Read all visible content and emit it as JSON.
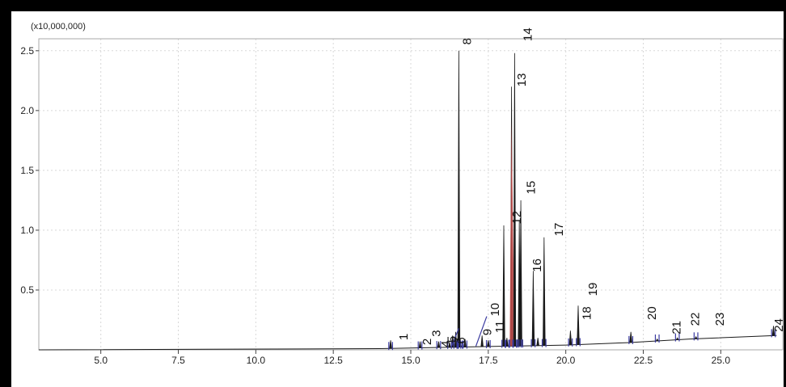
{
  "chart_data": {
    "type": "line",
    "title": "",
    "xlabel": "",
    "ylabel": "",
    "y_unit_label": "(x10,000,000)",
    "xlim": [
      3.0,
      27.0
    ],
    "ylim": [
      0,
      2.6
    ],
    "grid": true,
    "x_ticks": [
      5.0,
      7.5,
      10.0,
      12.5,
      15.0,
      17.5,
      20.0,
      22.5,
      25.0
    ],
    "x_tick_labels": [
      "5.0",
      "7.5",
      "10.0",
      "12.5",
      "15.0",
      "17.5",
      "20.0",
      "22.5",
      "25.0"
    ],
    "y_ticks": [
      0.5,
      1.0,
      1.5,
      2.0,
      2.5
    ],
    "y_tick_labels": [
      "0.5",
      "1.0",
      "1.5",
      "2.0",
      "2.5"
    ],
    "baseline": [
      [
        3.0,
        0.0
      ],
      [
        14.0,
        0.01
      ],
      [
        16.0,
        0.02
      ],
      [
        18.0,
        0.03
      ],
      [
        20.0,
        0.04
      ],
      [
        22.0,
        0.06
      ],
      [
        24.0,
        0.09
      ],
      [
        26.8,
        0.12
      ]
    ],
    "peaks": [
      {
        "label": "1",
        "x": 14.35,
        "y": 0.08
      },
      {
        "label": "2",
        "x": 15.3,
        "y": 0.07
      },
      {
        "label": "3",
        "x": 15.9,
        "y": 0.07
      },
      {
        "label": "4",
        "x": 16.25,
        "y": 0.06
      },
      {
        "label": "5",
        "x": 16.45,
        "y": 0.09
      },
      {
        "label": "6",
        "x": 16.6,
        "y": 0.08
      },
      {
        "label": "7",
        "x": 16.75,
        "y": 0.09
      },
      {
        "label": "8",
        "x": 16.55,
        "y": 2.5
      },
      {
        "label": "9",
        "x": 17.5,
        "y": 0.08
      },
      {
        "label": "10",
        "x": 18.0,
        "y": 1.04
      },
      {
        "label": "11",
        "x": 18.1,
        "y": 0.1
      },
      {
        "label": "12",
        "x": 18.55,
        "y": 1.25
      },
      {
        "label": "13",
        "x": 18.25,
        "y": 2.2
      },
      {
        "label": "14",
        "x": 18.35,
        "y": 2.48
      },
      {
        "label": "15",
        "x": 18.5,
        "y": 1.08
      },
      {
        "label": "16",
        "x": 18.95,
        "y": 0.66
      },
      {
        "label": "17",
        "x": 19.3,
        "y": 0.94
      },
      {
        "label": "18",
        "x": 20.15,
        "y": 0.16
      },
      {
        "label": "19",
        "x": 20.4,
        "y": 0.37
      },
      {
        "label": "20",
        "x": 22.1,
        "y": 0.15
      },
      {
        "label": "21",
        "x": 22.95,
        "y": 0.09
      },
      {
        "label": "22",
        "x": 23.6,
        "y": 0.1
      },
      {
        "label": "23",
        "x": 24.2,
        "y": 0.11
      },
      {
        "label": "24",
        "x": 26.7,
        "y": 0.2
      }
    ],
    "minor_peaks": [
      {
        "x": 16.35,
        "y": 0.12
      },
      {
        "x": 16.45,
        "y": 0.15
      },
      {
        "x": 17.3,
        "y": 0.12
      },
      {
        "x": 19.1,
        "y": 0.1
      }
    ],
    "colors": {
      "trace": "#1a1a1a",
      "highlight": "#c8504f",
      "marker": "#3a3aa0",
      "grid": "#d8d8d8"
    }
  }
}
